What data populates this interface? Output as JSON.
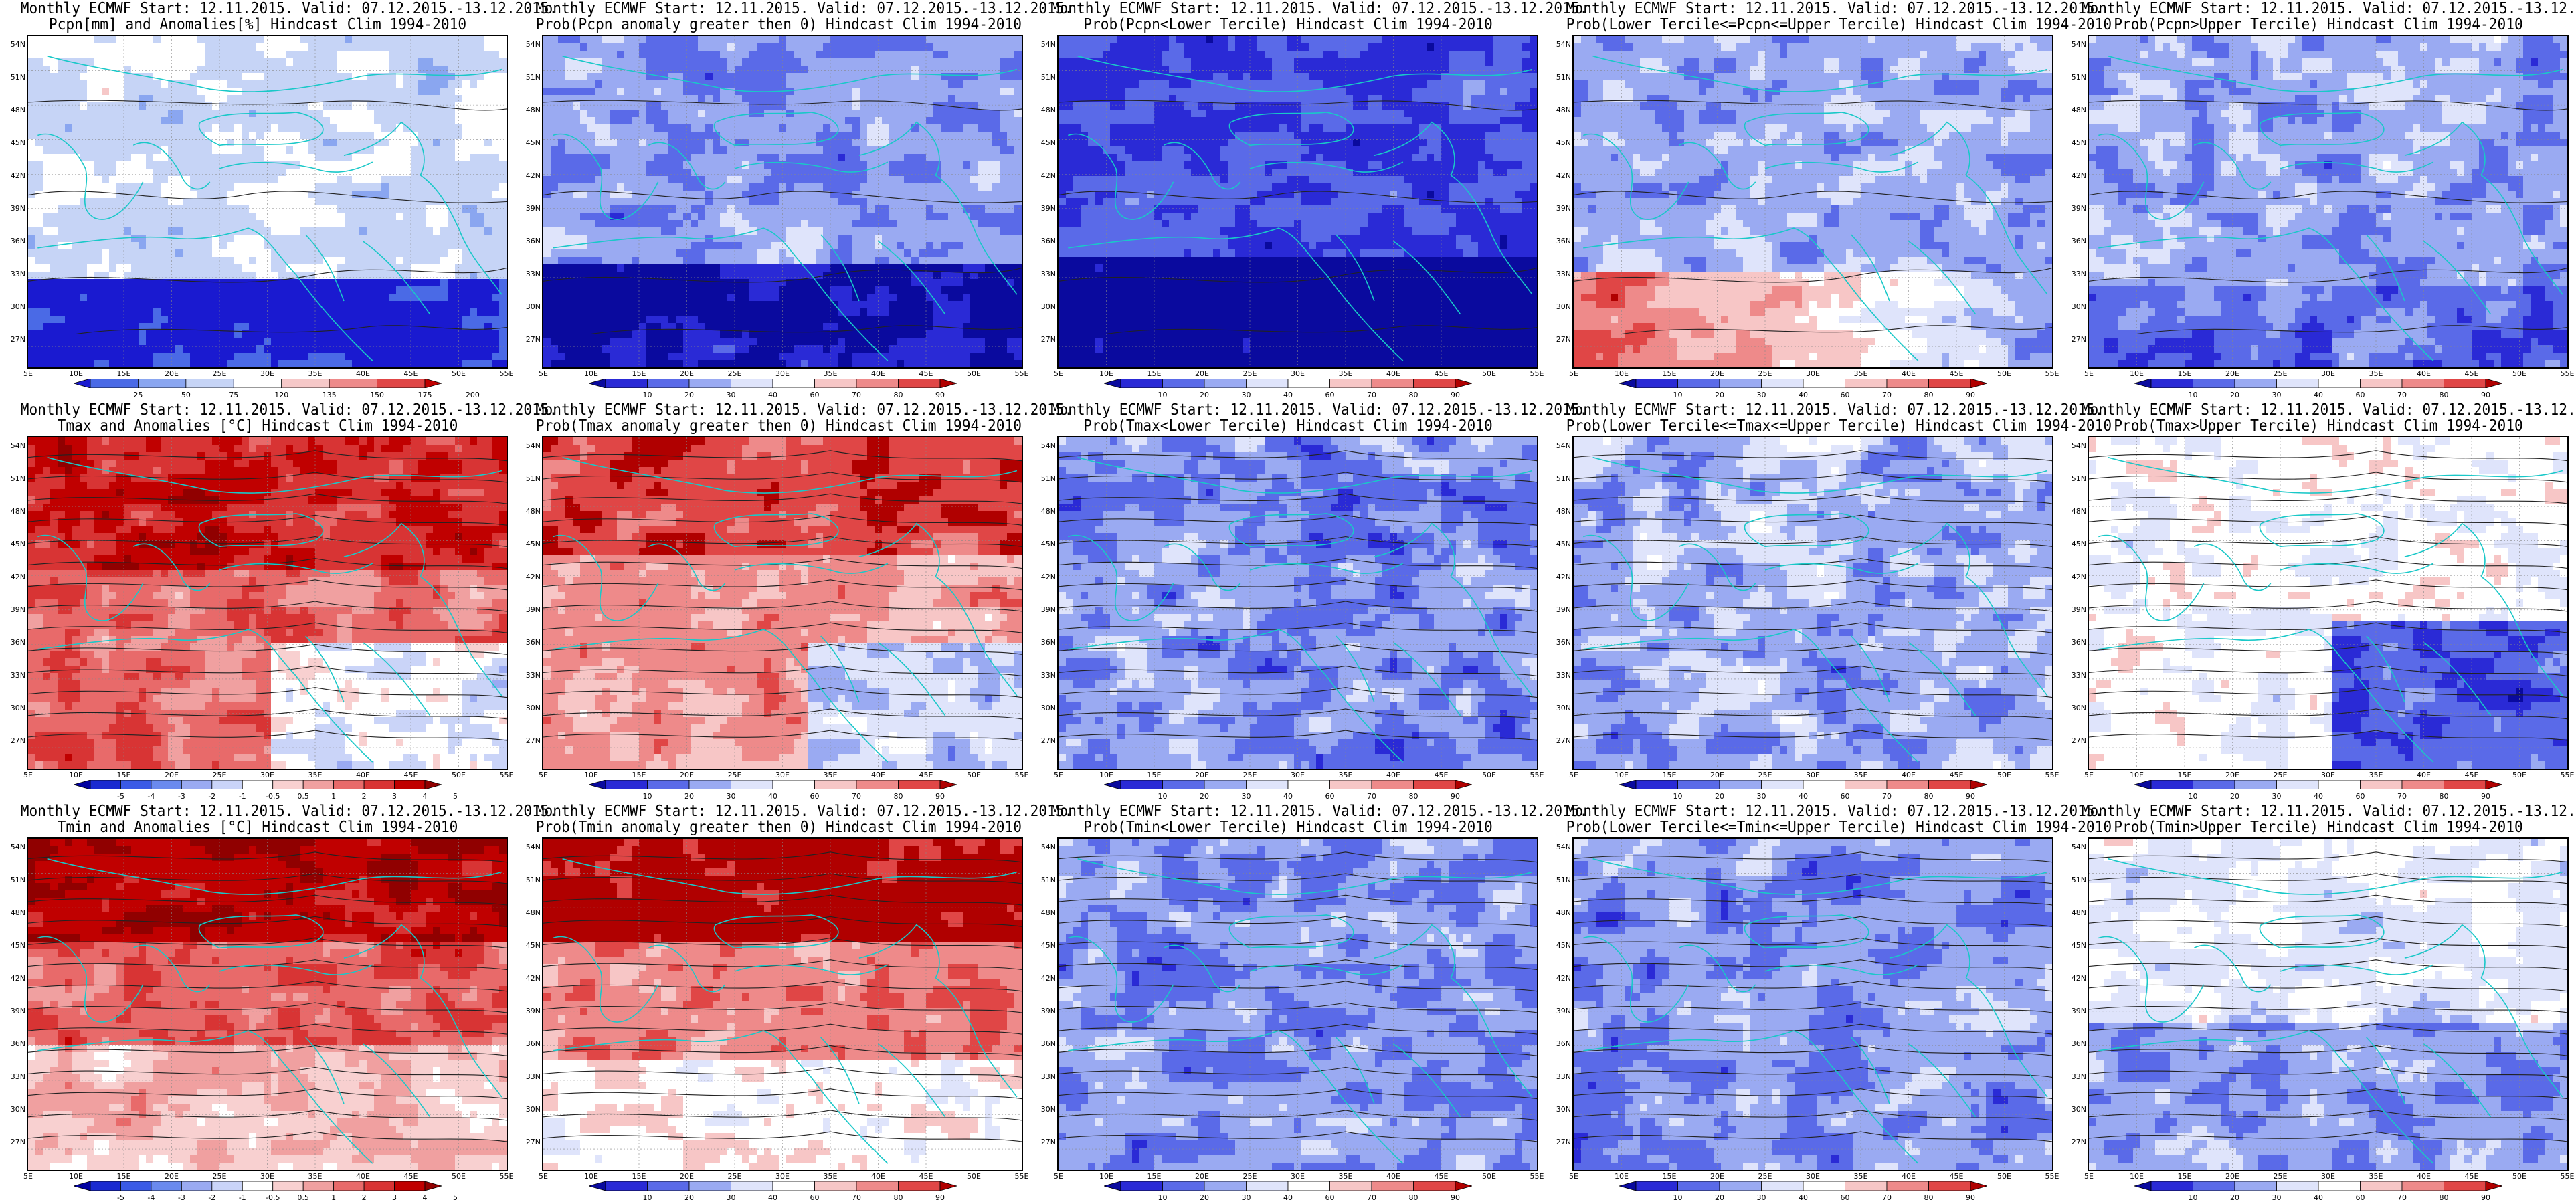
{
  "header_line": "Monthly ECMWF Start: 12.11.2015. Valid: 07.12.2015.-13.12.2015.",
  "latitude_labels": [
    "54N",
    "51N",
    "48N",
    "45N",
    "42N",
    "39N",
    "36N",
    "33N",
    "30N",
    "27N"
  ],
  "longitude_labels": [
    "5E",
    "10E",
    "15E",
    "20E",
    "25E",
    "30E",
    "35E",
    "40E",
    "45E",
    "50E",
    "55E"
  ],
  "colorbars": {
    "precip": {
      "ticks": [
        "25",
        "50",
        "75",
        "120",
        "135",
        "150",
        "175",
        "200"
      ],
      "colors": [
        "#1a1ad0",
        "#4a6ae6",
        "#8aa6f0",
        "#c6d4f6",
        "#ffffff",
        "#f6c8c8",
        "#ee8a8a",
        "#e04646",
        "#c00000"
      ]
    },
    "prob": {
      "ticks": [
        "10",
        "20",
        "30",
        "40",
        "60",
        "70",
        "80",
        "90"
      ],
      "colors": [
        "#0a0a9e",
        "#2a2ad6",
        "#5a6ae8",
        "#9aaaf2",
        "#dfe4fb",
        "#ffffff",
        "#f7c6c6",
        "#ee8a8a",
        "#e04646",
        "#b00000"
      ]
    },
    "temp": {
      "ticks": [
        "-5",
        "-4",
        "-3",
        "-2",
        "-1",
        "-0.5",
        "0.5",
        "1",
        "2",
        "3",
        "4",
        "5"
      ],
      "colors": [
        "#0000a0",
        "#1a2ad0",
        "#3a5ae6",
        "#6a8aee",
        "#9aaaf2",
        "#cad4f8",
        "#ffffff",
        "#f8d0d0",
        "#f0a0a0",
        "#e86a6a",
        "#d83434",
        "#c00000",
        "#900000"
      ]
    }
  },
  "panels": [
    {
      "subtitle": "Pcpn[mm] and Anomalies[%] Hindcast Clim 1994-2010",
      "colorbar": "precip",
      "field": "precip_anom"
    },
    {
      "subtitle": "Prob(Pcpn anomaly greater then 0) Hindcast Clim 1994-2010",
      "colorbar": "prob",
      "field": "precip_pos"
    },
    {
      "subtitle": "Prob(Pcpn<Lower Tercile) Hindcast Clim 1994-2010",
      "colorbar": "prob",
      "field": "precip_low"
    },
    {
      "subtitle": "Prob(Lower Tercile<=Pcpn<=Upper Tercile) Hindcast Clim 1994-2010",
      "colorbar": "prob",
      "field": "precip_mid"
    },
    {
      "subtitle": "Prob(Pcpn>Upper Tercile) Hindcast Clim 1994-2010",
      "colorbar": "prob",
      "field": "precip_up"
    },
    {
      "subtitle": "Tmax and Anomalies [°C] Hindcast Clim 1994-2010",
      "colorbar": "temp",
      "field": "tmax_anom"
    },
    {
      "subtitle": "Prob(Tmax anomaly greater then 0) Hindcast Clim 1994-2010",
      "colorbar": "prob",
      "field": "tmax_pos"
    },
    {
      "subtitle": "Prob(Tmax<Lower Tercile) Hindcast Clim 1994-2010",
      "colorbar": "prob",
      "field": "tmax_low"
    },
    {
      "subtitle": "Prob(Lower Tercile<=Tmax<=Upper Tercile) Hindcast Clim 1994-2010",
      "colorbar": "prob",
      "field": "tmax_mid"
    },
    {
      "subtitle": "Prob(Tmax>Upper Tercile) Hindcast Clim 1994-2010",
      "colorbar": "prob",
      "field": "tmax_up"
    },
    {
      "subtitle": "Tmin and Anomalies [°C] Hindcast Clim 1994-2010",
      "colorbar": "temp",
      "field": "tmin_anom"
    },
    {
      "subtitle": "Prob(Tmin anomaly greater then 0) Hindcast Clim 1994-2010",
      "colorbar": "prob",
      "field": "tmin_pos"
    },
    {
      "subtitle": "Prob(Tmin<Lower Tercile) Hindcast Clim 1994-2010",
      "colorbar": "prob",
      "field": "tmin_low"
    },
    {
      "subtitle": "Prob(Lower Tercile<=Tmin<=Upper Tercile) Hindcast Clim 1994-2010",
      "colorbar": "prob",
      "field": "tmin_mid"
    },
    {
      "subtitle": "Prob(Tmin>Upper Tercile) Hindcast Clim 1994-2010",
      "colorbar": "prob",
      "field": "tmin_up"
    }
  ]
}
